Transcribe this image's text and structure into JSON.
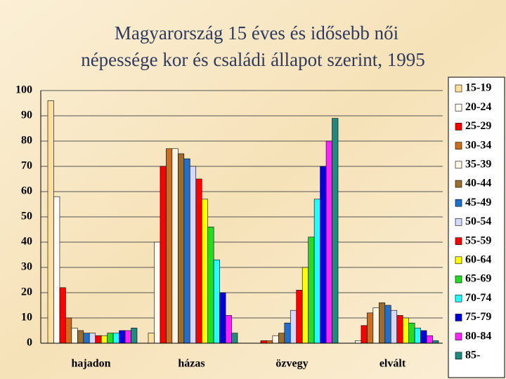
{
  "chart_data": {
    "type": "bar",
    "title": [
      "Magyarország 15 éves és idősebb női",
      "népessége kor és családi állapot szerint, 1995"
    ],
    "categories": [
      "hajadon",
      "házas",
      "özvegy",
      "elvált"
    ],
    "ylim": [
      0,
      100
    ],
    "yticks": [
      0,
      10,
      20,
      30,
      40,
      50,
      60,
      70,
      80,
      90,
      100
    ],
    "grid": true,
    "legend": "right",
    "series": [
      {
        "name": "15-19",
        "color": "#ffdf9e",
        "values": [
          96,
          4,
          0,
          0
        ]
      },
      {
        "name": "20-24",
        "color": "#fffdf2",
        "values": [
          58,
          40,
          0,
          1
        ]
      },
      {
        "name": "25-29",
        "color": "#ff0000",
        "values": [
          22,
          70,
          1,
          7
        ]
      },
      {
        "name": "30-34",
        "color": "#cc6d1f",
        "values": [
          10,
          77,
          1,
          12
        ]
      },
      {
        "name": "35-39",
        "color": "#fff6e6",
        "values": [
          6,
          77,
          3,
          14
        ]
      },
      {
        "name": "40-44",
        "color": "#9c6d2e",
        "values": [
          5,
          75,
          4,
          16
        ]
      },
      {
        "name": "45-49",
        "color": "#1f6fcc",
        "values": [
          4,
          73,
          8,
          15
        ]
      },
      {
        "name": "50-54",
        "color": "#d6d9ff",
        "values": [
          4,
          70,
          13,
          13
        ]
      },
      {
        "name": "55-59",
        "color": "#ff0000",
        "values": [
          3,
          65,
          21,
          11
        ]
      },
      {
        "name": "60-64",
        "color": "#ffff00",
        "values": [
          3,
          57,
          30,
          10
        ]
      },
      {
        "name": "65-69",
        "color": "#22dd22",
        "values": [
          4,
          46,
          42,
          8
        ]
      },
      {
        "name": "70-74",
        "color": "#22ffff",
        "values": [
          4,
          33,
          57,
          6
        ]
      },
      {
        "name": "75-79",
        "color": "#0000dd",
        "values": [
          5,
          20,
          70,
          5
        ]
      },
      {
        "name": "80-84",
        "color": "#ff22ff",
        "values": [
          5,
          11,
          80,
          3
        ]
      },
      {
        "name": "85-",
        "color": "#1f8a80",
        "values": [
          6,
          4,
          89,
          1
        ]
      }
    ]
  }
}
